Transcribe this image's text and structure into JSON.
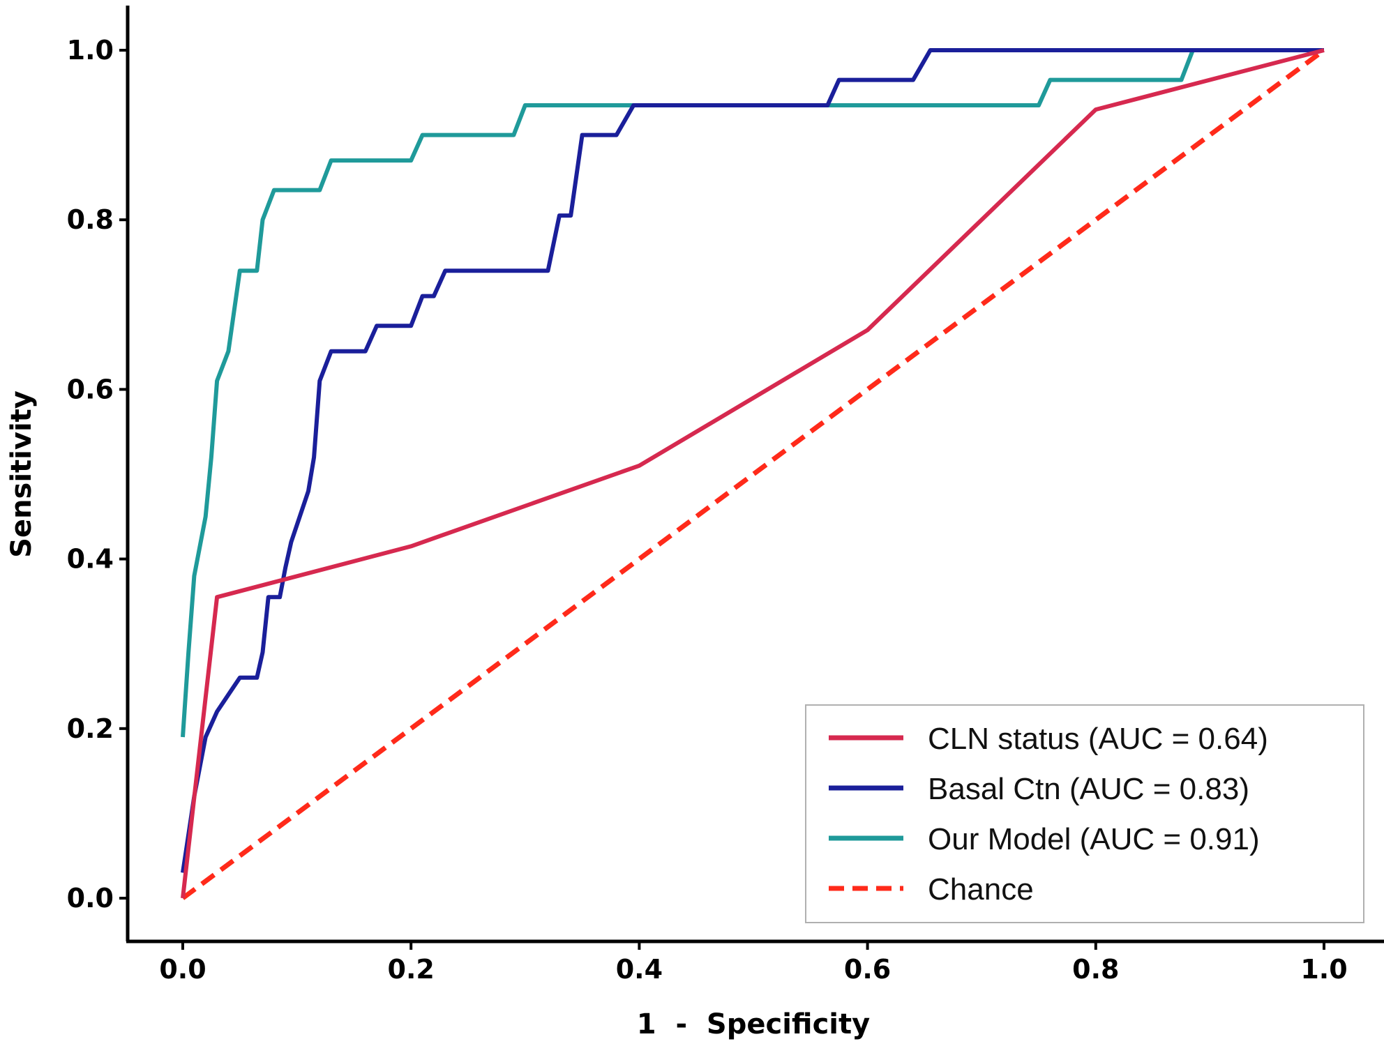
{
  "chart_data": {
    "type": "line",
    "title": "",
    "xlabel": "1  -  Specificity",
    "ylabel": "Sensitivity",
    "xlim": [
      0,
      1
    ],
    "ylim": [
      0,
      1
    ],
    "x_ticks": [
      0.0,
      0.2,
      0.4,
      0.6,
      0.8,
      1.0
    ],
    "y_ticks": [
      0.0,
      0.2,
      0.4,
      0.6,
      0.8,
      1.0
    ],
    "x_tick_labels": [
      "0.0",
      "0.2",
      "0.4",
      "0.6",
      "0.8",
      "1.0"
    ],
    "y_tick_labels": [
      "0.0",
      "0.2",
      "0.4",
      "0.6",
      "0.8",
      "1.0"
    ],
    "grid": false,
    "legend_position": "bottom-right",
    "series": [
      {
        "name": "CLN  status (AUC = 0.64)",
        "color": "#d6294f",
        "dash": "solid",
        "points": [
          [
            0.0,
            0.0
          ],
          [
            0.03,
            0.355
          ],
          [
            0.2,
            0.415
          ],
          [
            0.4,
            0.51
          ],
          [
            0.6,
            0.67
          ],
          [
            0.8,
            0.93
          ],
          [
            1.0,
            1.0
          ]
        ]
      },
      {
        "name": "Basal  Ctn (AUC = 0.83)",
        "color": "#1a1f9a",
        "dash": "solid",
        "points": [
          [
            0.0,
            0.03
          ],
          [
            0.01,
            0.12
          ],
          [
            0.02,
            0.19
          ],
          [
            0.03,
            0.22
          ],
          [
            0.04,
            0.24
          ],
          [
            0.05,
            0.26
          ],
          [
            0.06,
            0.26
          ],
          [
            0.065,
            0.26
          ],
          [
            0.07,
            0.29
          ],
          [
            0.075,
            0.355
          ],
          [
            0.085,
            0.355
          ],
          [
            0.09,
            0.39
          ],
          [
            0.095,
            0.42
          ],
          [
            0.1,
            0.44
          ],
          [
            0.11,
            0.48
          ],
          [
            0.115,
            0.52
          ],
          [
            0.12,
            0.61
          ],
          [
            0.13,
            0.645
          ],
          [
            0.16,
            0.645
          ],
          [
            0.17,
            0.675
          ],
          [
            0.2,
            0.675
          ],
          [
            0.21,
            0.71
          ],
          [
            0.22,
            0.71
          ],
          [
            0.23,
            0.74
          ],
          [
            0.32,
            0.74
          ],
          [
            0.33,
            0.805
          ],
          [
            0.34,
            0.805
          ],
          [
            0.35,
            0.9
          ],
          [
            0.38,
            0.9
          ],
          [
            0.395,
            0.935
          ],
          [
            0.565,
            0.935
          ],
          [
            0.575,
            0.965
          ],
          [
            0.64,
            0.965
          ],
          [
            0.655,
            1.0
          ],
          [
            1.0,
            1.0
          ]
        ]
      },
      {
        "name": "Our  Model (AUC = 0.91)",
        "color": "#1f9a9a",
        "dash": "solid",
        "points": [
          [
            0.0,
            0.19
          ],
          [
            0.005,
            0.29
          ],
          [
            0.01,
            0.38
          ],
          [
            0.02,
            0.45
          ],
          [
            0.025,
            0.52
          ],
          [
            0.03,
            0.61
          ],
          [
            0.04,
            0.645
          ],
          [
            0.05,
            0.74
          ],
          [
            0.065,
            0.74
          ],
          [
            0.07,
            0.8
          ],
          [
            0.08,
            0.835
          ],
          [
            0.12,
            0.835
          ],
          [
            0.13,
            0.87
          ],
          [
            0.2,
            0.87
          ],
          [
            0.21,
            0.9
          ],
          [
            0.29,
            0.9
          ],
          [
            0.3,
            0.935
          ],
          [
            0.75,
            0.935
          ],
          [
            0.76,
            0.965
          ],
          [
            0.875,
            0.965
          ],
          [
            0.885,
            1.0
          ],
          [
            1.0,
            1.0
          ]
        ]
      },
      {
        "name": "Chance",
        "color": "#ff2a1a",
        "dash": "dashed",
        "points": [
          [
            0.0,
            0.0
          ],
          [
            1.0,
            1.0
          ]
        ]
      }
    ]
  }
}
